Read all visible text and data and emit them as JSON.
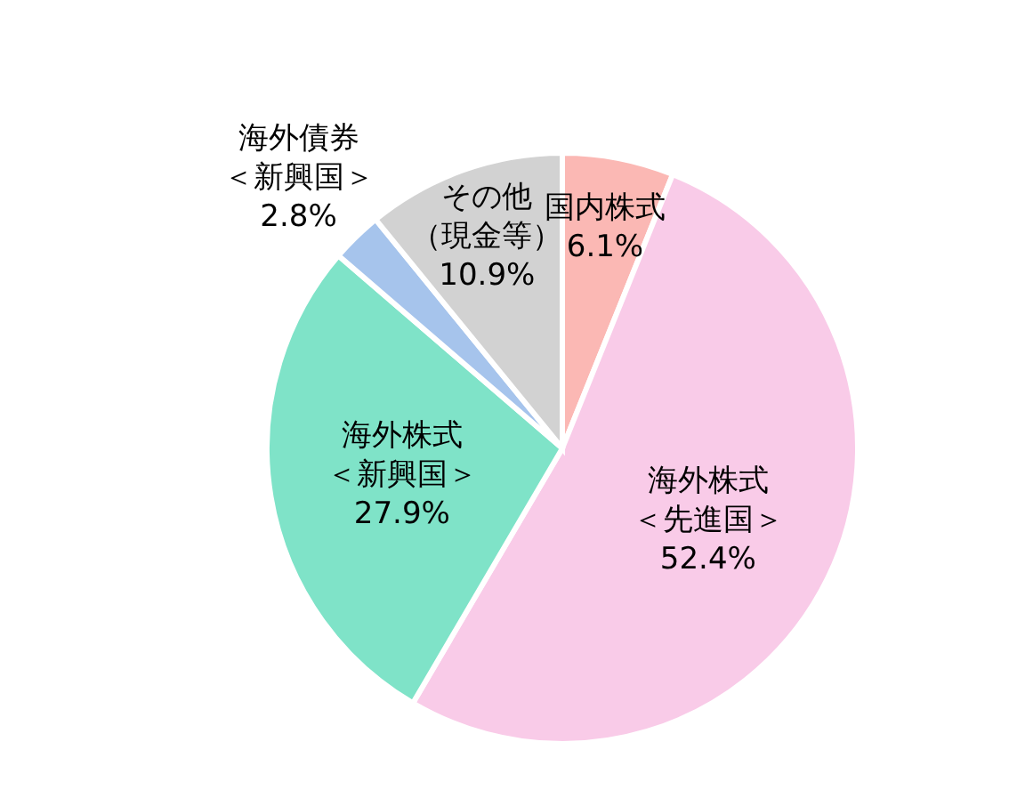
{
  "chart_data": {
    "type": "pie",
    "categories": [
      "国内株式",
      "海外株式＜先進国＞",
      "海外株式＜新興国＞",
      "海外債券＜新興国＞",
      "その他（現金等）"
    ],
    "values": [
      6.1,
      52.4,
      27.9,
      2.8,
      10.9
    ],
    "value_labels": [
      "6.1%",
      "52.4%",
      "27.9%",
      "2.8%",
      "10.9%"
    ],
    "colors": [
      "#fbb8b4",
      "#f9cbe8",
      "#7fe3c8",
      "#a6c4ec",
      "#d2d2d2"
    ]
  }
}
